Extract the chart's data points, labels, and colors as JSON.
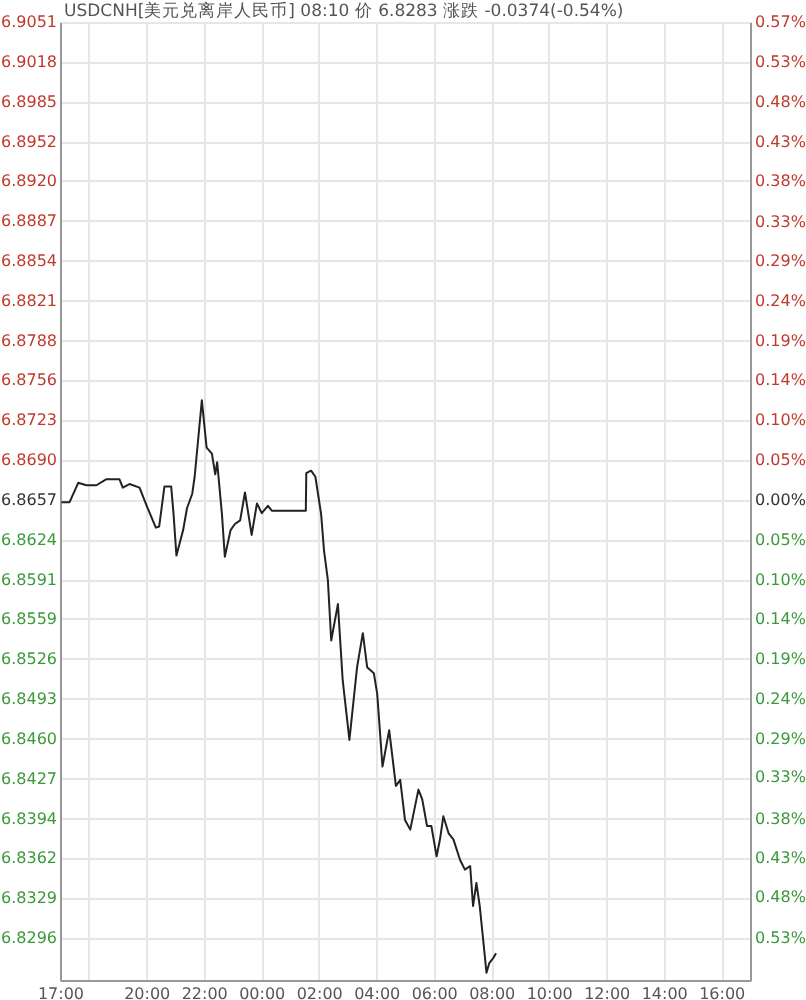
{
  "chart_data": {
    "type": "line",
    "title": "USDCNH[美元兑离岸人民币] 08:10 价 6.8283 涨跌 -0.0374(-0.54%)",
    "x": [
      "2000-01-01T17:03",
      "2000-01-01T17:20",
      "2000-01-01T17:38",
      "2000-01-01T17:55",
      "2000-01-01T18:16",
      "2000-01-01T18:37",
      "2000-01-01T19:04",
      "2000-01-01T19:11",
      "2000-01-01T19:25",
      "2000-01-01T19:46",
      "2000-01-01T20:02",
      "2000-01-01T20:20",
      "2000-01-01T20:27",
      "2000-01-01T20:38",
      "2000-01-01T20:52",
      "2000-01-01T20:57",
      "2000-01-01T21:03",
      "2000-01-01T21:17",
      "2000-01-01T21:25",
      "2000-01-01T21:36",
      "2000-01-01T21:41",
      "2000-01-01T21:56",
      "2000-01-01T22:06",
      "2000-01-01T22:17",
      "2000-01-01T22:24",
      "2000-01-01T22:28",
      "2000-01-01T22:38",
      "2000-01-01T22:44",
      "2000-01-01T22:56",
      "2000-01-01T23:05",
      "2000-01-01T23:16",
      "2000-01-01T23:26",
      "2000-01-01T23:40",
      "2000-01-01T23:51",
      "2000-01-02T00:01",
      "2000-01-02T00:14",
      "2000-01-02T00:22",
      "2000-01-02T01:33",
      "2000-01-02T01:34",
      "2000-01-02T01:44",
      "2000-01-02T01:53",
      "2000-01-02T02:05",
      "2000-01-02T02:11",
      "2000-01-02T02:19",
      "2000-01-02T02:26",
      "2000-01-02T02:40",
      "2000-01-02T02:50",
      "2000-01-02T03:04",
      "2000-01-02T03:20",
      "2000-01-02T03:32",
      "2000-01-02T03:41",
      "2000-01-02T03:55",
      "2000-01-02T04:02",
      "2000-01-02T04:13",
      "2000-01-02T04:27",
      "2000-01-02T04:41",
      "2000-01-02T04:50",
      "2000-01-02T05:00",
      "2000-01-02T05:11",
      "2000-01-02T05:28",
      "2000-01-02T05:36",
      "2000-01-02T05:46",
      "2000-01-02T05:55",
      "2000-01-02T06:06",
      "2000-01-02T06:13",
      "2000-01-02T06:20",
      "2000-01-02T06:31",
      "2000-01-02T06:41",
      "2000-01-02T06:55",
      "2000-01-02T07:05",
      "2000-01-02T07:16",
      "2000-01-02T07:22",
      "2000-01-02T07:29",
      "2000-01-02T07:36",
      "2000-01-02T07:46",
      "2000-01-02T07:50",
      "2000-01-02T07:56",
      "2000-01-02T08:04",
      "2000-01-02T08:10"
    ],
    "series": [
      {
        "color": "#222222",
        "values": [
          6.8655,
          6.8655,
          6.8671,
          6.8669,
          6.8669,
          6.8674,
          6.8674,
          6.8667,
          6.867,
          6.8667,
          6.8651,
          6.8634,
          6.8635,
          6.8668,
          6.8668,
          6.8645,
          6.8611,
          6.8632,
          6.865,
          6.8662,
          6.8676,
          6.8739,
          6.87,
          6.8695,
          6.8678,
          6.8688,
          6.8645,
          6.861,
          6.8632,
          6.8637,
          6.864,
          6.8663,
          6.8628,
          6.8654,
          6.8646,
          6.8652,
          6.8648,
          6.8648,
          6.8679,
          6.8681,
          6.8676,
          6.8645,
          6.8615,
          6.8591,
          6.8541,
          6.8571,
          6.8508,
          6.8459,
          6.8519,
          6.8547,
          6.8519,
          6.8514,
          6.8497,
          6.8437,
          6.8467,
          6.8421,
          6.8426,
          6.8393,
          6.8385,
          6.8418,
          6.841,
          6.8388,
          6.8388,
          6.8363,
          6.8377,
          6.8396,
          6.8382,
          6.8377,
          6.836,
          6.8352,
          6.8355,
          6.8322,
          6.8341,
          6.8322,
          6.8283,
          6.8267,
          6.8275,
          6.8279,
          6.8283
        ]
      }
    ],
    "xlim": [
      "2000-01-01T17:00",
      "2000-01-02T17:00"
    ],
    "xticks": [
      {
        "value": "2000-01-01T17:00",
        "label": "17:00"
      },
      {
        "value": "2000-01-01T18:00",
        "label": null
      },
      {
        "value": "2000-01-01T20:00",
        "label": "20:00"
      },
      {
        "value": "2000-01-01T22:00",
        "label": "22:00"
      },
      {
        "value": "2000-01-02T00:00",
        "label": "00:00"
      },
      {
        "value": "2000-01-02T02:00",
        "label": "02:00"
      },
      {
        "value": "2000-01-02T04:00",
        "label": "04:00"
      },
      {
        "value": "2000-01-02T06:00",
        "label": "06:00"
      },
      {
        "value": "2000-01-02T08:00",
        "label": "08:00"
      },
      {
        "value": "2000-01-02T10:00",
        "label": "10:00"
      },
      {
        "value": "2000-01-02T12:00",
        "label": "12:00"
      },
      {
        "value": "2000-01-02T14:00",
        "label": "14:00"
      },
      {
        "value": "2000-01-02T16:00",
        "label": "16:00"
      }
    ],
    "ylim": [
      6.8261,
      6.9051
    ],
    "yticks": [
      6.9051,
      6.9018,
      6.8985,
      6.8952,
      {
        "value": 6.892,
        "label": "6.8920"
      },
      6.8887,
      6.8854,
      6.8821,
      6.8788,
      6.8756,
      6.8723,
      {
        "value": 6.869,
        "label": "6.8690"
      },
      6.8657,
      6.8624,
      6.8591,
      6.8559,
      6.8526,
      6.8493,
      {
        "value": 6.846,
        "label": "6.8460"
      },
      6.8427,
      6.8394,
      6.8362,
      6.8329,
      6.8296
    ],
    "y2lim": [
      -0.5768,
      0.5739
    ],
    "y2ticks": [
      {
        "value": 0.5739,
        "label": "0.57%"
      },
      {
        "value": 0.5258,
        "label": "0.53%"
      },
      {
        "value": 0.4777,
        "label": "0.48%"
      },
      {
        "value": 0.4297,
        "label": "0.43%"
      },
      {
        "value": 0.3831,
        "label": "0.38%"
      },
      {
        "value": 0.3335,
        "label": "0.33%"
      },
      {
        "value": 0.2869,
        "label": "0.29%"
      },
      {
        "value": 0.2389,
        "label": "0.24%"
      },
      {
        "value": 0.1908,
        "label": "0.19%"
      },
      {
        "value": 0.1442,
        "label": "0.14%"
      },
      {
        "value": 0.0961,
        "label": "0.10%"
      },
      {
        "value": 0.0481,
        "label": "0.05%"
      },
      {
        "value": 0,
        "label": "0.00%"
      },
      {
        "value": -0.0481,
        "label": "0.05%"
      },
      {
        "value": -0.0961,
        "label": "0.10%"
      },
      {
        "value": -0.1427,
        "label": "0.14%"
      },
      {
        "value": -0.1908,
        "label": "0.19%"
      },
      {
        "value": -0.2389,
        "label": "0.24%"
      },
      {
        "value": -0.2869,
        "label": "0.29%"
      },
      {
        "value": -0.3335,
        "label": "0.33%"
      },
      {
        "value": -0.3831,
        "label": "0.38%"
      },
      {
        "value": -0.4297,
        "label": "0.43%"
      },
      {
        "value": -0.4777,
        "label": "0.48%"
      },
      {
        "value": -0.5258,
        "label": "0.53%"
      }
    ],
    "grid": true
  }
}
